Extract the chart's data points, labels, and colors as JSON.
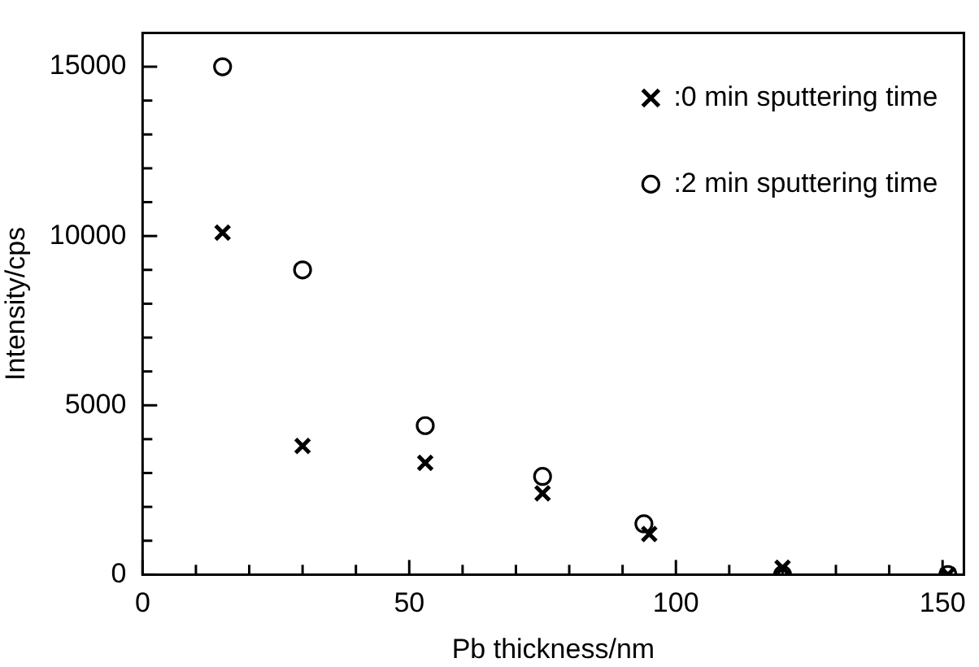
{
  "chart_data": {
    "type": "scatter",
    "xlabel": "Pb thickness/nm",
    "ylabel": "Intensity/cps",
    "xlim": [
      0,
      154
    ],
    "ylim": [
      0,
      16000
    ],
    "xticks": [
      0,
      {
        "value": 10,
        "label": null
      },
      {
        "value": 20,
        "label": null
      },
      {
        "value": 30,
        "label": null
      },
      {
        "value": 40,
        "label": null
      },
      50,
      {
        "value": 60,
        "label": null
      },
      {
        "value": 70,
        "label": null
      },
      {
        "value": 80,
        "label": null
      },
      {
        "value": 90,
        "label": null
      },
      100,
      {
        "value": 110,
        "label": null
      },
      {
        "value": 120,
        "label": null
      },
      {
        "value": 130,
        "label": null
      },
      {
        "value": 140,
        "label": null
      },
      150
    ],
    "yticks": [
      0,
      {
        "value": 1000,
        "label": null
      },
      {
        "value": 2000,
        "label": null
      },
      {
        "value": 3000,
        "label": null
      },
      {
        "value": 4000,
        "label": null
      },
      5000,
      {
        "value": 6000,
        "label": null
      },
      {
        "value": 7000,
        "label": null
      },
      {
        "value": 8000,
        "label": null
      },
      {
        "value": 9000,
        "label": null
      },
      10000,
      {
        "value": 11000,
        "label": null
      },
      {
        "value": 12000,
        "label": null
      },
      {
        "value": 13000,
        "label": null
      },
      {
        "value": 14000,
        "label": null
      },
      15000
    ],
    "grid": false,
    "legend": "top right",
    "series": [
      {
        "name": ":0 min sputtering time",
        "color": "#000000",
        "marker": "cross",
        "x": [
          15,
          30,
          53,
          75,
          95,
          120,
          151
        ],
        "values": [
          10100,
          3800,
          3300,
          2400,
          1200,
          200,
          0
        ]
      },
      {
        "name": ":2 min sputtering time",
        "color": "#000000",
        "marker": "circle",
        "x": [
          15,
          30,
          53,
          75,
          94,
          120,
          151
        ],
        "values": [
          15000,
          9000,
          4400,
          2900,
          1500,
          0,
          0
        ]
      }
    ]
  }
}
